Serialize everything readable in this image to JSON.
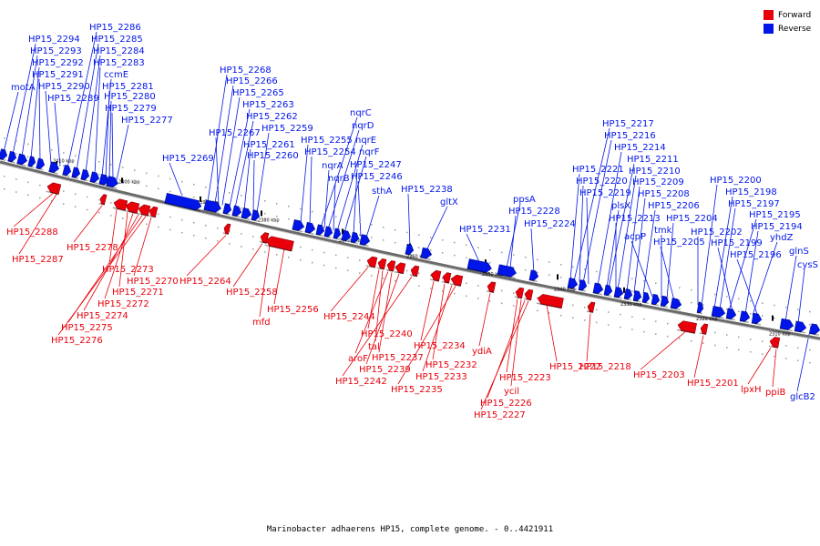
{
  "colors": {
    "forward": "#e8000a",
    "reverse": "#0015e8",
    "backbone": "#6a6a6a"
  },
  "legend": {
    "forward_label": "Forward",
    "reverse_label": "Reverse"
  },
  "caption": "Marinobacter adhaerens HP15, complete genome. - 0..4421911",
  "ticks": [
    {
      "label": "2410 kbp",
      "kb": 2410
    },
    {
      "label": "2400 kbp",
      "kb": 2400
    },
    {
      "label": "2390 kbp",
      "kb": 2390
    },
    {
      "label": "2380 kbp",
      "kb": 2380
    },
    {
      "label": "2370 kbp",
      "kb": 2370
    },
    {
      "label": "2360 kbp",
      "kb": 2360
    },
    {
      "label": "2350 kbp",
      "kb": 2350
    },
    {
      "label": "2340 kbp",
      "kb": 2340
    },
    {
      "label": "2330 kbp",
      "kb": 2330
    },
    {
      "label": "2320 kbp",
      "kb": 2320
    },
    {
      "label": "2310 kbp",
      "kb": 2310
    }
  ],
  "reverse_genes": [
    "motA",
    "HP15_2294",
    "HP15_2293",
    "HP15_2292",
    "HP15_2291",
    "HP15_2290",
    "HP15_2289",
    "HP15_2286",
    "HP15_2285",
    "HP15_2284",
    "HP15_2283",
    "ccmE",
    "HP15_2281",
    "HP15_2280",
    "HP15_2279",
    "HP15_2277",
    "HP15_2269",
    "HP15_2268",
    "HP15_2266",
    "HP15_2265",
    "HP15_2263",
    "HP15_2262",
    "HP15_2267",
    "HP15_2261",
    "HP15_2260",
    "HP15_2259",
    "HP15_2255",
    "HP15_2254",
    "nqrC",
    "nqrD",
    "nqrE",
    "nqrF",
    "nqrA",
    "nqrB",
    "HP15_2247",
    "HP15_2246",
    "sthA",
    "HP15_2238",
    "gltX",
    "HP15_2231",
    "ppsA",
    "HP15_2228",
    "HP15_2224",
    "HP15_2217",
    "HP15_2216",
    "HP15_2214",
    "HP15_2221",
    "HP15_2211",
    "HP15_2220",
    "HP15_2210",
    "HP15_2219",
    "HP15_2209",
    "HP15_2208",
    "plsX",
    "HP15_2206",
    "HP15_2213",
    "acpP",
    "tmk",
    "HP15_2204",
    "HP15_2205",
    "HP15_2200",
    "HP15_2198",
    "HP15_2197",
    "HP15_2195",
    "HP15_2202",
    "HP15_2194",
    "HP15_2199",
    "yhdZ",
    "HP15_2196",
    "glnS",
    "cysS",
    "glcB2"
  ],
  "forward_genes": [
    "HP15_2288",
    "HP15_2287",
    "HP15_2278",
    "HP15_2273",
    "HP15_2270",
    "HP15_2271",
    "HP15_2272",
    "HP15_2274",
    "HP15_2275",
    "HP15_2276",
    "HP15_2264",
    "HP15_2258",
    "mfd",
    "HP15_2256",
    "HP15_2244",
    "HP15_2240",
    "tal",
    "aroF",
    "HP15_2237",
    "HP15_2239",
    "HP15_2242",
    "HP15_2234",
    "HP15_2232",
    "HP15_2233",
    "HP15_2235",
    "ydiA",
    "HP15_2223",
    "ycil",
    "HP15_2226",
    "HP15_2227",
    "HP15_2222",
    "HP15_2218",
    "HP15_2203",
    "HP15_2201",
    "lpxH",
    "ppiB"
  ]
}
